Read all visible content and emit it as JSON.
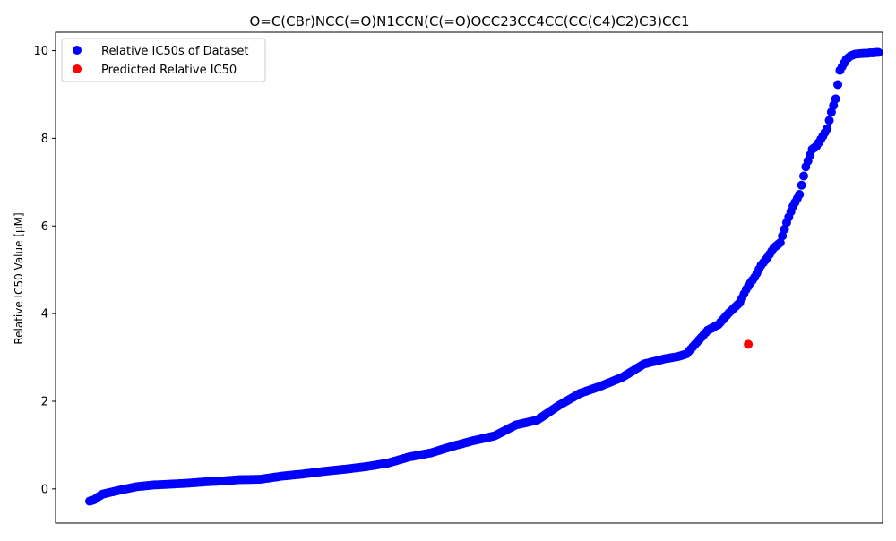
{
  "chart_data": {
    "type": "scatter",
    "title": "O=C(CBr)NCC(=O)N1CCN(C(=O)OCC23CC4CC(CC(C4)C2)C3)CC1",
    "xlabel": "",
    "ylabel": "Relative IC50 Value [µM]",
    "xlim": [
      -16,
      372
    ],
    "ylim": [
      -0.78,
      10.42
    ],
    "yticks": [
      0,
      2,
      4,
      6,
      8,
      10
    ],
    "grid": false,
    "legend_position": "top-left",
    "series": [
      {
        "name": "Relative IC50s of Dataset",
        "color": "#0000ff",
        "x": [
          0,
          2,
          6,
          14,
          22,
          30,
          38,
          46,
          54,
          62,
          70,
          80,
          90,
          100,
          110,
          120,
          130,
          140,
          150,
          160,
          170,
          180,
          190,
          200,
          210,
          220,
          230,
          240,
          250,
          260,
          270,
          276,
          280,
          285,
          290,
          295,
          300,
          305,
          308,
          310,
          312,
          315,
          318,
          321,
          324,
          327,
          330,
          333,
          336,
          339,
          341,
          344,
          346,
          348,
          350,
          352,
          355,
          357,
          359,
          361,
          364,
          365,
          366,
          367,
          368,
          369,
          370
        ],
        "y": [
          -0.28,
          -0.25,
          -0.12,
          -0.03,
          0.05,
          0.09,
          0.11,
          0.13,
          0.16,
          0.18,
          0.21,
          0.22,
          0.29,
          0.34,
          0.4,
          0.45,
          0.51,
          0.59,
          0.73,
          0.82,
          0.97,
          1.1,
          1.21,
          1.46,
          1.57,
          1.9,
          2.18,
          2.35,
          2.55,
          2.85,
          2.97,
          3.02,
          3.08,
          3.35,
          3.62,
          3.75,
          4.02,
          4.25,
          4.55,
          4.7,
          4.83,
          5.1,
          5.28,
          5.5,
          5.62,
          6.08,
          6.45,
          6.72,
          7.35,
          7.75,
          7.82,
          8.05,
          8.22,
          8.6,
          8.9,
          9.55,
          9.8,
          9.88,
          9.92,
          9.93,
          9.94,
          9.94,
          9.95,
          9.95,
          9.95,
          9.96,
          9.96
        ]
      },
      {
        "name": "Predicted Relative IC50",
        "color": "#ff0000",
        "x": [
          309
        ],
        "y": [
          3.3
        ]
      }
    ]
  }
}
